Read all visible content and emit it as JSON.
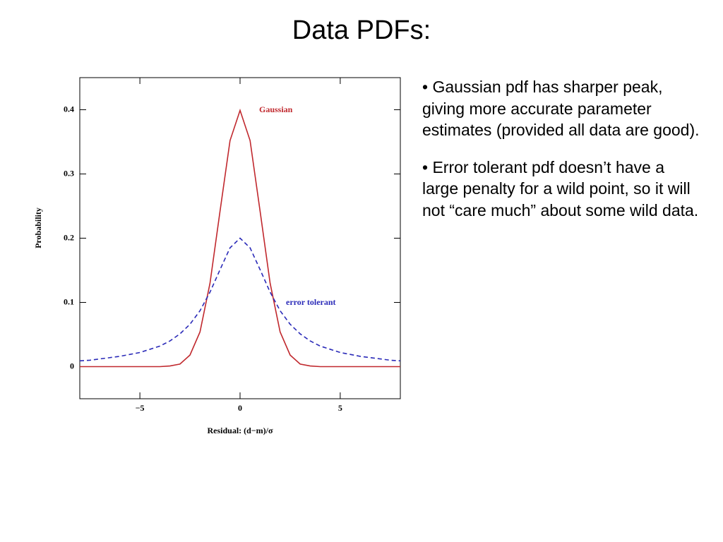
{
  "title": "Data PDFs:",
  "bullets": [
    "• Gaussian pdf has sharper peak, giving more accurate parameter estimates (provided all data are good).",
    "• Error tolerant pdf doesn’t have a large penalty for a wild point, so it will not “care much” about some wild data."
  ],
  "chart_data": {
    "type": "line",
    "x": [
      -8,
      -7.5,
      -7,
      -6.5,
      -6,
      -5.5,
      -5,
      -4.5,
      -4,
      -3.5,
      -3,
      -2.5,
      -2,
      -1.5,
      -1,
      -0.5,
      0,
      0.5,
      1,
      1.5,
      2,
      2.5,
      3,
      3.5,
      4,
      4.5,
      5,
      5.5,
      6,
      6.5,
      7,
      7.5,
      8
    ],
    "series": [
      {
        "name": "Gaussian",
        "color": "#c0282d",
        "dash": false,
        "values": [
          0,
          0,
          0,
          0,
          0,
          0,
          0,
          0,
          0,
          0.001,
          0.004,
          0.018,
          0.054,
          0.13,
          0.242,
          0.352,
          0.399,
          0.352,
          0.242,
          0.13,
          0.054,
          0.018,
          0.004,
          0.001,
          0,
          0,
          0,
          0,
          0,
          0,
          0,
          0,
          0
        ]
      },
      {
        "name": "error tolerant",
        "color": "#2a2ab8",
        "dash": true,
        "values": [
          0.009,
          0.01,
          0.012,
          0.014,
          0.016,
          0.019,
          0.022,
          0.027,
          0.032,
          0.04,
          0.051,
          0.066,
          0.087,
          0.116,
          0.151,
          0.185,
          0.2,
          0.185,
          0.151,
          0.116,
          0.087,
          0.066,
          0.051,
          0.04,
          0.032,
          0.027,
          0.022,
          0.019,
          0.016,
          0.014,
          0.012,
          0.01,
          0.009
        ]
      }
    ],
    "xlabel": "Residual: (d−m)/σ",
    "ylabel": "Probability",
    "xlim": [
      -8,
      8
    ],
    "ylim": [
      -0.05,
      0.45
    ],
    "xticks": [
      {
        "value": -5,
        "label": "−5"
      },
      0,
      5
    ],
    "yticks": [
      0,
      0.1,
      0.2,
      0.3,
      0.4
    ]
  }
}
